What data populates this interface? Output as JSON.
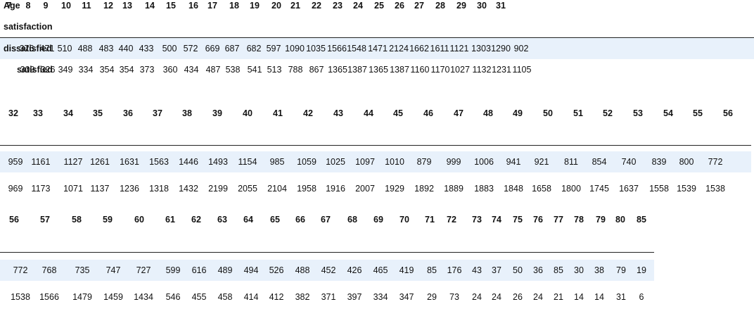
{
  "table": {
    "age_label": "Age",
    "satisfaction_label": "satisfaction",
    "row_labels": [
      "dissatisfied",
      "satisfied"
    ],
    "blocks": [
      {
        "ages": [
          "7",
          "8",
          "9",
          "10",
          "11",
          "12",
          "13",
          "14",
          "15",
          "16",
          "17",
          "18",
          "19",
          "20",
          "21",
          "22",
          "23",
          "24",
          "25",
          "26",
          "27",
          "28",
          "29",
          "30",
          "31"
        ],
        "dissatisfied": [
          "376",
          "471",
          "510",
          "488",
          "483",
          "440",
          "433",
          "500",
          "572",
          "669",
          "687",
          "682",
          "597",
          "1090",
          "1035",
          "1566",
          "1548",
          "1471",
          "2124",
          "1662",
          "1611",
          "1121",
          "1303",
          "1290",
          "902"
        ],
        "satisfied": [
          "309",
          "326",
          "349",
          "334",
          "354",
          "354",
          "373",
          "360",
          "434",
          "487",
          "538",
          "541",
          "513",
          "788",
          "867",
          "1365",
          "1387",
          "1365",
          "1387",
          "1160",
          "1170",
          "1027",
          "1132",
          "1231",
          "1105"
        ]
      },
      {
        "ages": [
          "32",
          "33",
          "34",
          "35",
          "36",
          "37",
          "38",
          "39",
          "40",
          "41",
          "42",
          "43",
          "44",
          "45",
          "46",
          "47",
          "48",
          "49",
          "50",
          "51",
          "52",
          "53",
          "54",
          "55",
          "56"
        ],
        "dissatisfied": [
          "959",
          "1161",
          "1127",
          "1261",
          "1631",
          "1563",
          "1446",
          "1493",
          "1154",
          "985",
          "1059",
          "1025",
          "1097",
          "1010",
          "879",
          "999",
          "1006",
          "941",
          "921",
          "811",
          "854",
          "740",
          "839",
          "800",
          "772"
        ],
        "satisfied": [
          "969",
          "1173",
          "1071",
          "1137",
          "1236",
          "1318",
          "1432",
          "2199",
          "2055",
          "2104",
          "1958",
          "1916",
          "2007",
          "1929",
          "1892",
          "1889",
          "1883",
          "1848",
          "1658",
          "1800",
          "1745",
          "1637",
          "1558",
          "1539",
          "1538"
        ]
      },
      {
        "ages": [
          "56",
          "57",
          "58",
          "59",
          "60",
          "61",
          "62",
          "63",
          "64",
          "65",
          "66",
          "67",
          "68",
          "69",
          "70",
          "71",
          "72",
          "73",
          "74",
          "75",
          "76",
          "77",
          "78",
          "79",
          "80",
          "85"
        ],
        "dissatisfied": [
          "772",
          "768",
          "735",
          "747",
          "727",
          "599",
          "616",
          "489",
          "494",
          "526",
          "488",
          "452",
          "426",
          "465",
          "419",
          "85",
          "176",
          "43",
          "37",
          "50",
          "36",
          "85",
          "30",
          "38",
          "79",
          "19"
        ],
        "satisfied": [
          "1538",
          "1566",
          "1479",
          "1459",
          "1434",
          "546",
          "455",
          "458",
          "414",
          "412",
          "382",
          "371",
          "397",
          "334",
          "347",
          "29",
          "73",
          "24",
          "24",
          "26",
          "24",
          "21",
          "14",
          "14",
          "31",
          "6"
        ]
      }
    ]
  }
}
